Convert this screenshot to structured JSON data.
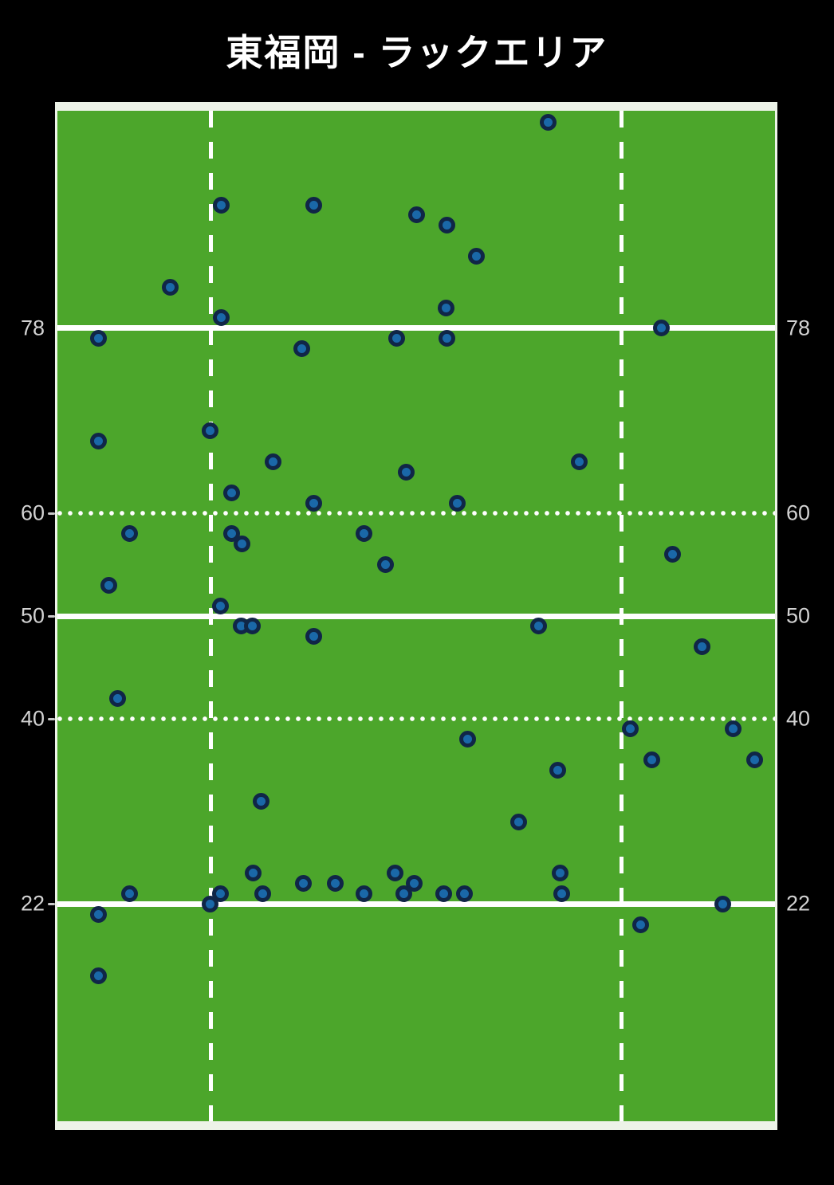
{
  "title": "東福岡 - ラックエリア",
  "colors": {
    "background": "#000000",
    "field_green": "#4ca62b",
    "field_border": "#edf3e8",
    "pitch_line": "#ffffff",
    "marker_fill": "#1a68a8",
    "marker_ring": "#102647",
    "axis_label": "#d2d2d2"
  },
  "chart_data": {
    "type": "scatter",
    "title": "東福岡 - ラックエリア",
    "xlabel": "",
    "ylabel": "",
    "x_range": [
      0,
      70
    ],
    "y_range": [
      0,
      100
    ],
    "grid": false,
    "legend": "none",
    "y_axis": {
      "tick_values": [
        78,
        60,
        50,
        40,
        22
      ],
      "tick_labels": [
        "78",
        "60",
        "50",
        "40",
        "22"
      ],
      "label_sides": "both"
    },
    "field_lines": {
      "horizontal": [
        {
          "y": 78,
          "style": "solid",
          "label": "78",
          "tick_left": false
        },
        {
          "y": 60,
          "style": "dotted",
          "label": "60",
          "tick_left": true
        },
        {
          "y": 50,
          "style": "solid",
          "label": "50",
          "tick_left": true
        },
        {
          "y": 40,
          "style": "dotted",
          "label": "40",
          "tick_left": true
        },
        {
          "y": 22,
          "style": "solid",
          "label": "22",
          "tick_left": true
        }
      ],
      "vertical_dashed_x": [
        15,
        55
      ]
    },
    "points": [
      [
        47.9,
        98
      ],
      [
        16.0,
        90
      ],
      [
        25.0,
        90
      ],
      [
        35.0,
        89
      ],
      [
        38.0,
        88
      ],
      [
        40.9,
        85
      ],
      [
        11.0,
        82
      ],
      [
        37.9,
        80
      ],
      [
        16.0,
        79
      ],
      [
        58.9,
        78
      ],
      [
        4.0,
        77
      ],
      [
        33.1,
        77
      ],
      [
        38.0,
        77
      ],
      [
        23.8,
        76
      ],
      [
        14.9,
        68
      ],
      [
        4.0,
        67
      ],
      [
        21.0,
        65
      ],
      [
        50.9,
        65
      ],
      [
        34.0,
        64
      ],
      [
        17.0,
        62
      ],
      [
        25.0,
        61
      ],
      [
        39.0,
        61
      ],
      [
        7.0,
        58
      ],
      [
        17.0,
        58
      ],
      [
        29.9,
        58
      ],
      [
        18.0,
        57
      ],
      [
        60.0,
        56
      ],
      [
        32.0,
        55
      ],
      [
        5.0,
        53
      ],
      [
        15.9,
        51
      ],
      [
        17.9,
        49
      ],
      [
        19.0,
        49
      ],
      [
        46.9,
        49
      ],
      [
        25.0,
        48
      ],
      [
        62.9,
        47
      ],
      [
        5.9,
        42
      ],
      [
        55.9,
        39
      ],
      [
        65.9,
        39
      ],
      [
        40.0,
        38
      ],
      [
        58.0,
        36
      ],
      [
        68.0,
        36
      ],
      [
        48.8,
        35
      ],
      [
        19.9,
        32
      ],
      [
        45.0,
        30
      ],
      [
        19.1,
        25
      ],
      [
        32.9,
        25
      ],
      [
        49.0,
        25
      ],
      [
        24.0,
        24
      ],
      [
        27.1,
        24
      ],
      [
        34.8,
        24
      ],
      [
        7.0,
        23
      ],
      [
        15.9,
        23
      ],
      [
        20.0,
        23
      ],
      [
        29.9,
        23
      ],
      [
        33.8,
        23
      ],
      [
        37.7,
        23
      ],
      [
        39.7,
        23
      ],
      [
        49.2,
        23
      ],
      [
        14.9,
        22
      ],
      [
        64.9,
        22
      ],
      [
        4.0,
        21
      ],
      [
        56.9,
        20
      ],
      [
        4.0,
        15
      ]
    ]
  }
}
